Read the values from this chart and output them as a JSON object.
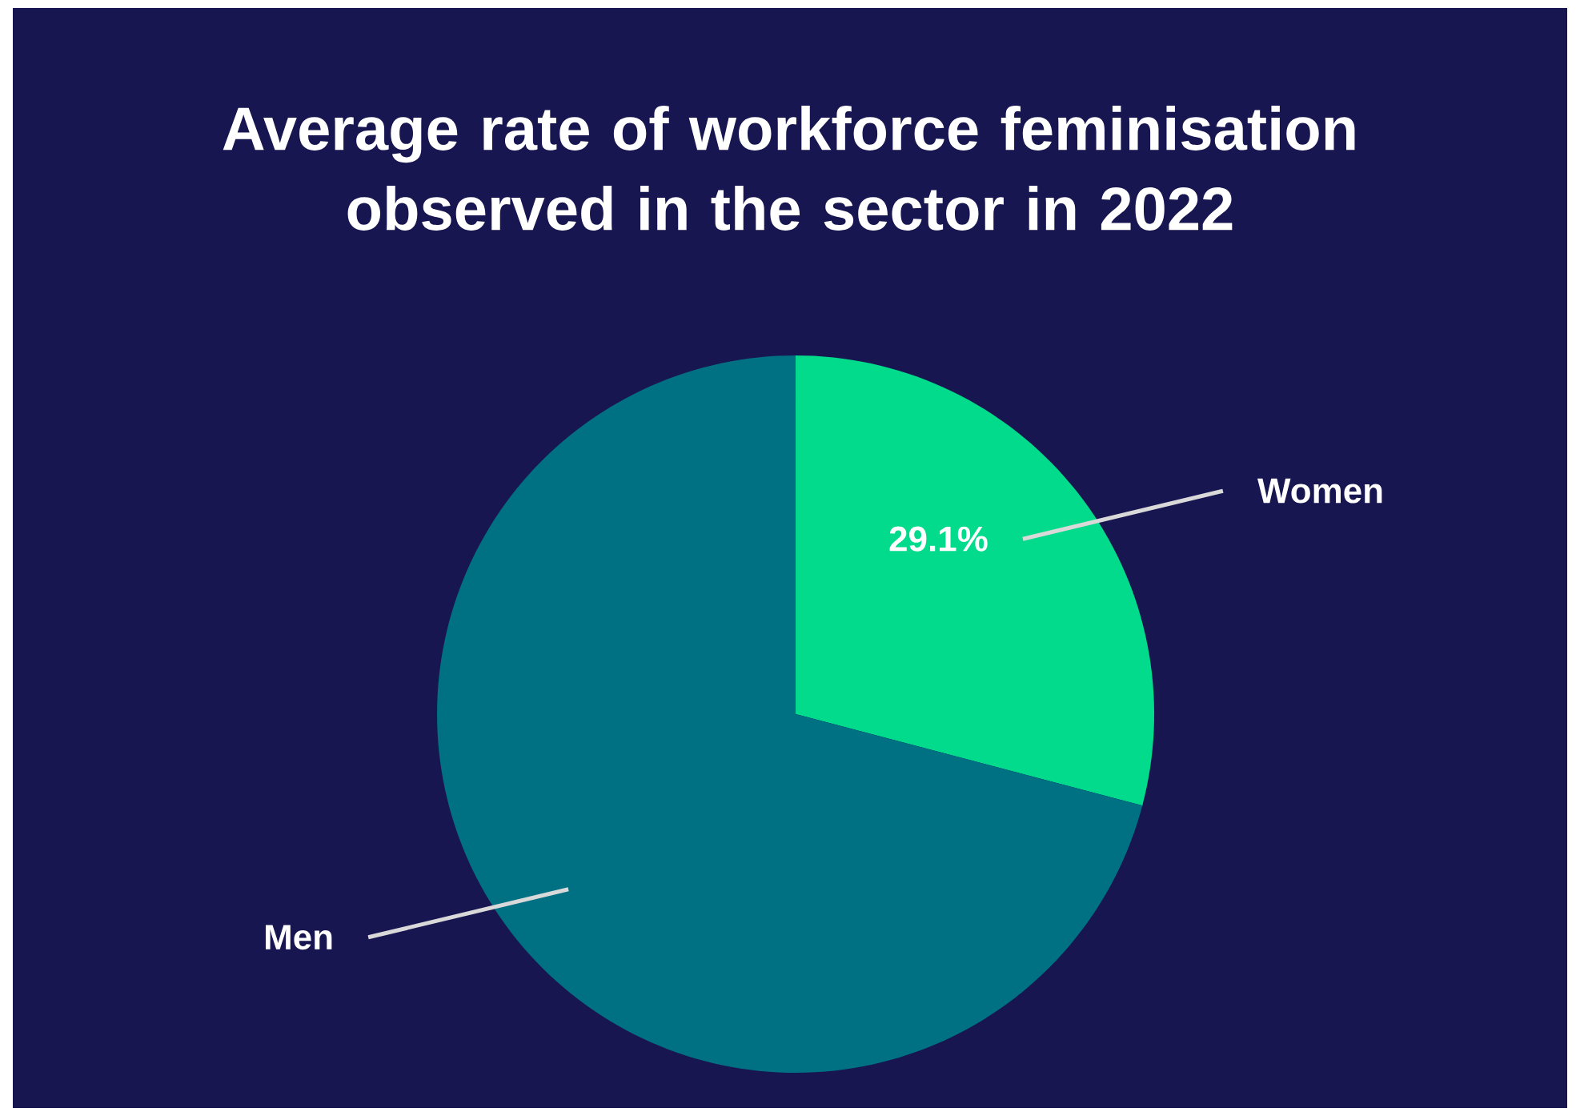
{
  "chart_data": {
    "type": "pie",
    "title": "Average rate of workforce feminisation observed in the sector in 2022",
    "categories": [
      "Women",
      "Men"
    ],
    "values": [
      29.1,
      70.9
    ],
    "colors": [
      "#02db8c",
      "#007083"
    ],
    "value_labels": [
      "29.1%",
      null
    ]
  }
}
